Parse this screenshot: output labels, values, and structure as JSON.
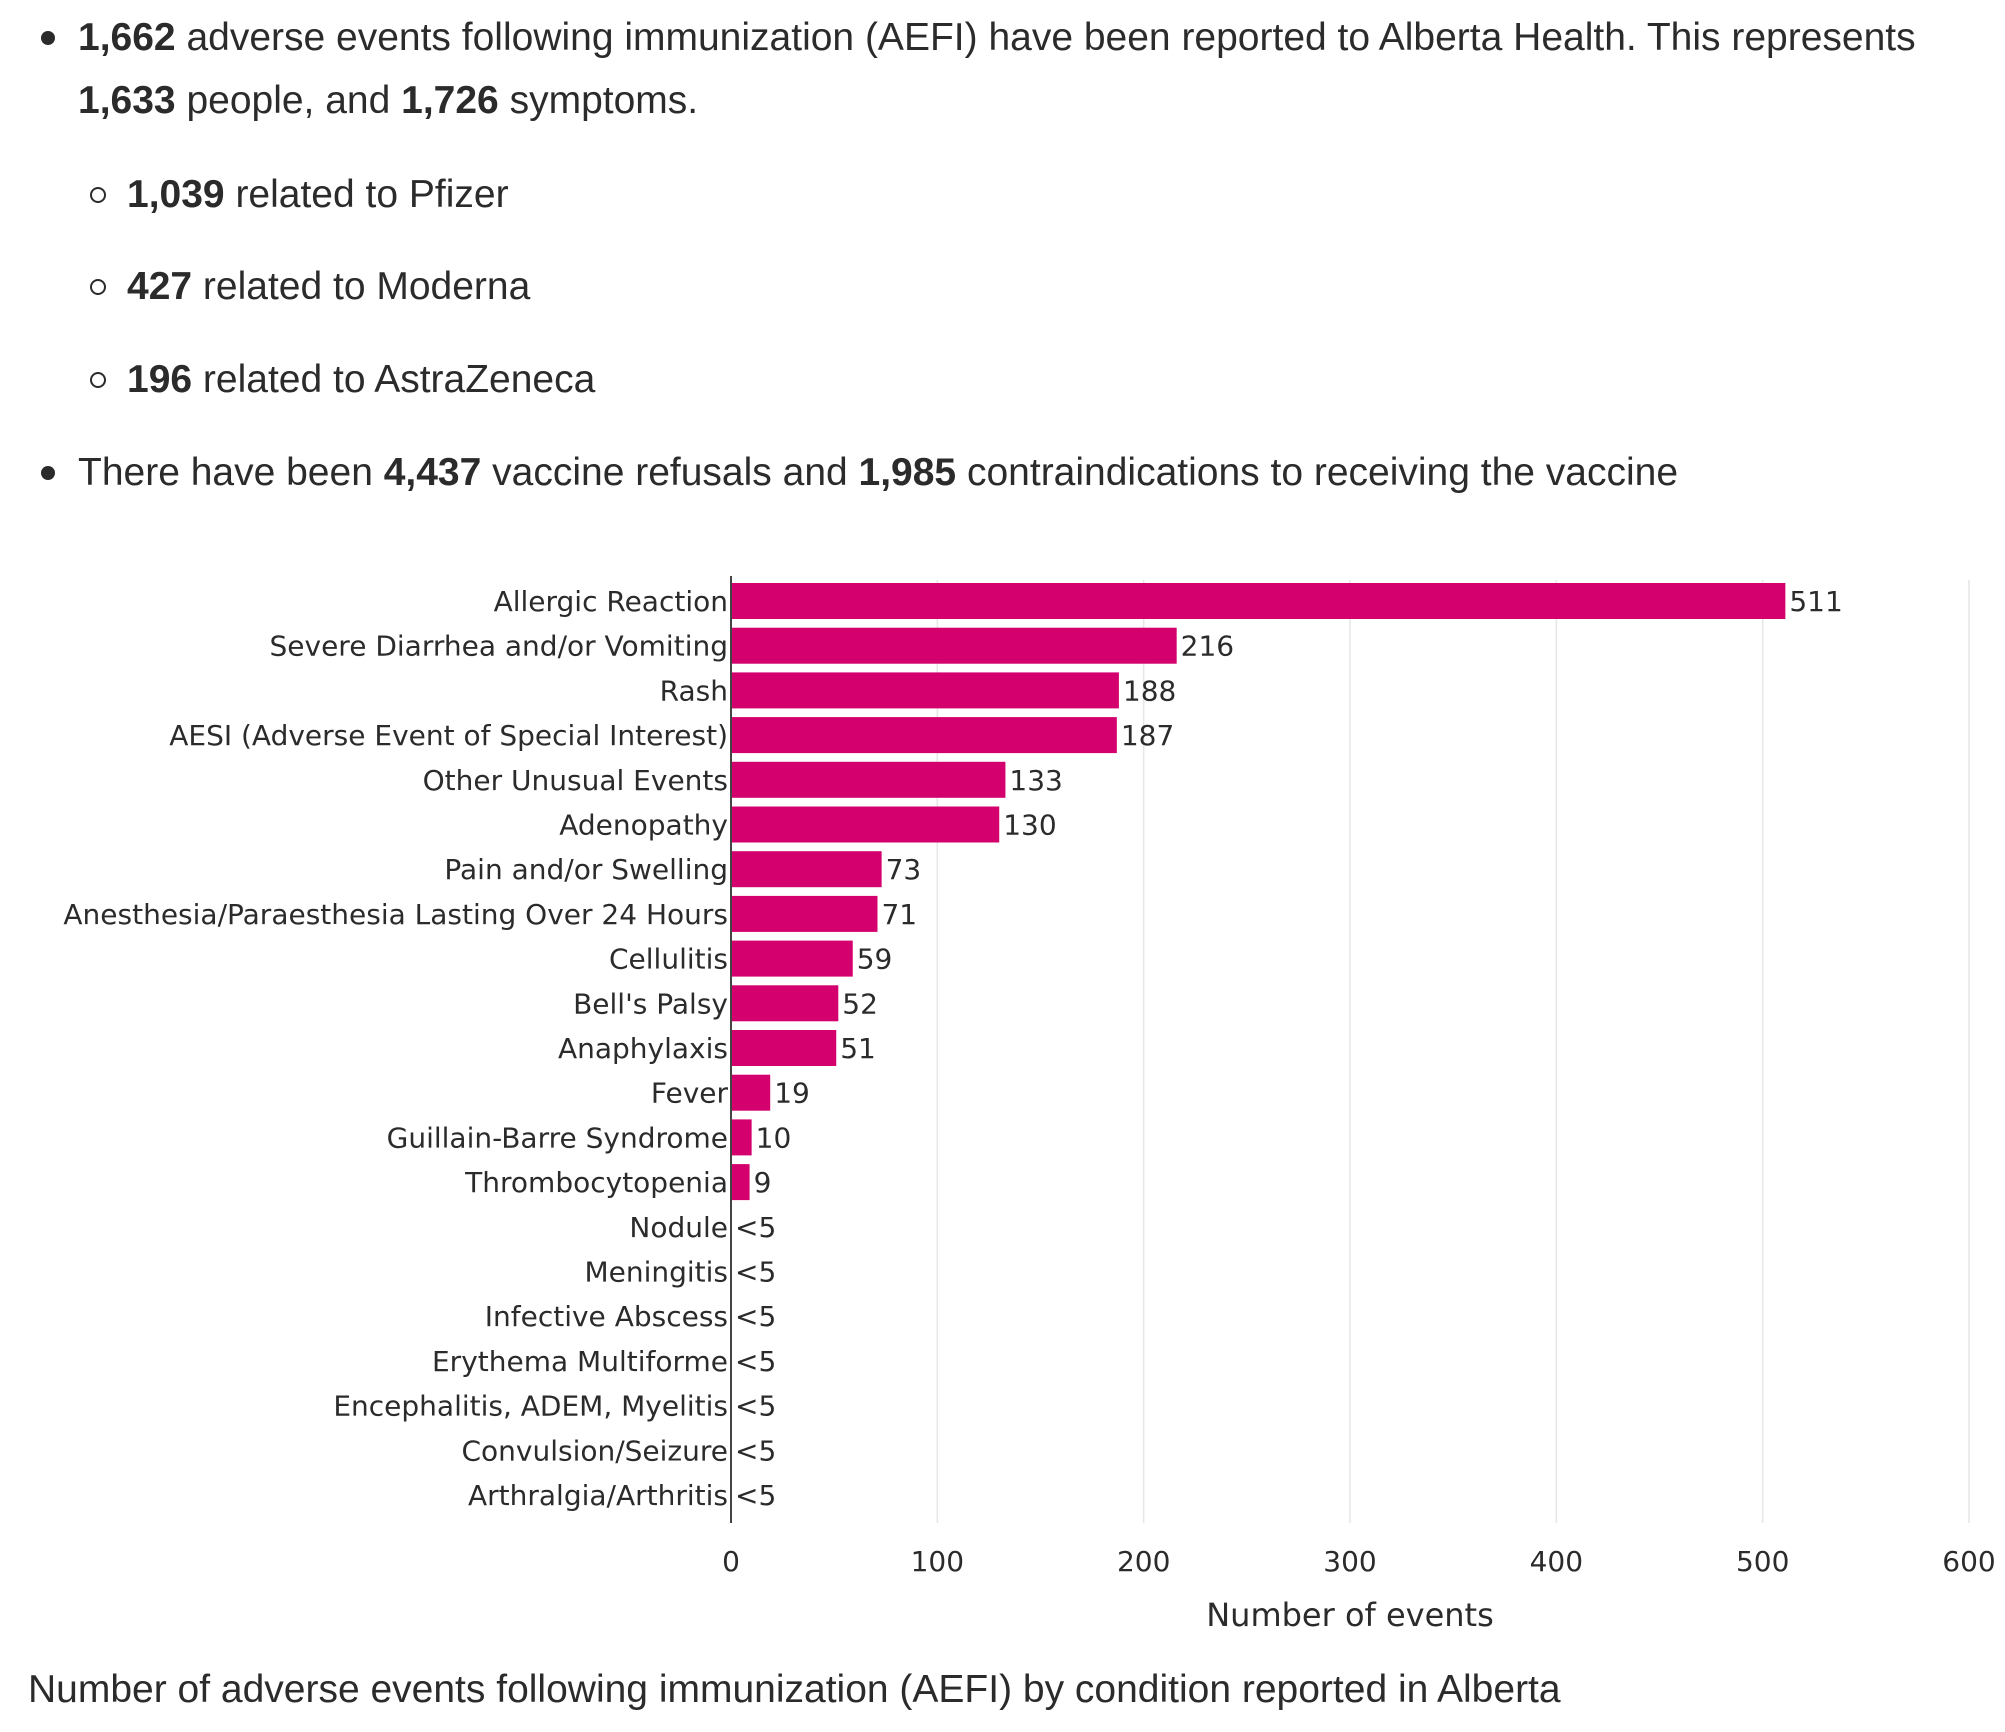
{
  "summary": {
    "line1": {
      "n1": "1,662",
      "t1": " adverse events following immunization (AEFI) have been reported to Alberta Health. This represents ",
      "n2": "1,633",
      "t2": " people, and ",
      "n3": "1,726",
      "t3": " symptoms."
    },
    "sub": [
      {
        "count": "1,039",
        "text": " related to Pfizer"
      },
      {
        "count": "427",
        "text": " related to Moderna"
      },
      {
        "count": "196",
        "text": " related to AstraZeneca"
      }
    ],
    "line2": {
      "t1": "There have been ",
      "n1": "4,437",
      "t2": " vaccine refusals and ",
      "n2": "1,985",
      "t3": " contraindications to receiving the vaccine"
    }
  },
  "colors": {
    "bar": "#d4006e",
    "grid": "#e6e6e6",
    "axis": "#444444",
    "text": "#2b2b2b"
  },
  "chart_data": {
    "type": "bar",
    "orientation": "horizontal",
    "categories": [
      "Allergic Reaction",
      "Severe Diarrhea and/or Vomiting",
      "Rash",
      "AESI (Adverse Event of Special Interest)",
      "Other Unusual Events",
      "Adenopathy",
      "Pain and/or Swelling",
      "Anesthesia/Paraesthesia Lasting Over 24 Hours",
      "Cellulitis",
      "Bell's Palsy",
      "Anaphylaxis",
      "Fever",
      "Guillain-Barre Syndrome",
      "Thrombocytopenia",
      "Nodule",
      "Meningitis",
      "Infective Abscess",
      "Erythema Multiforme",
      "Encephalitis, ADEM, Myelitis",
      "Convulsion/Seizure",
      "Arthralgia/Arthritis"
    ],
    "values": [
      511,
      216,
      188,
      187,
      133,
      130,
      73,
      71,
      59,
      52,
      51,
      19,
      10,
      9,
      0,
      0,
      0,
      0,
      0,
      0,
      0
    ],
    "value_labels": [
      "511",
      "216",
      "188",
      "187",
      "133",
      "130",
      "73",
      "71",
      "59",
      "52",
      "51",
      "19",
      "10",
      "9",
      "<5",
      "<5",
      "<5",
      "<5",
      "<5",
      "<5",
      "<5"
    ],
    "xlim": [
      0,
      600
    ],
    "xticks": [
      0,
      100,
      200,
      300,
      400,
      500,
      600
    ],
    "xlabel": "Number of events",
    "ylabel": "",
    "grid": true,
    "legend": false
  },
  "caption": "Number of adverse events following immunization (AEFI) by condition reported in Alberta"
}
